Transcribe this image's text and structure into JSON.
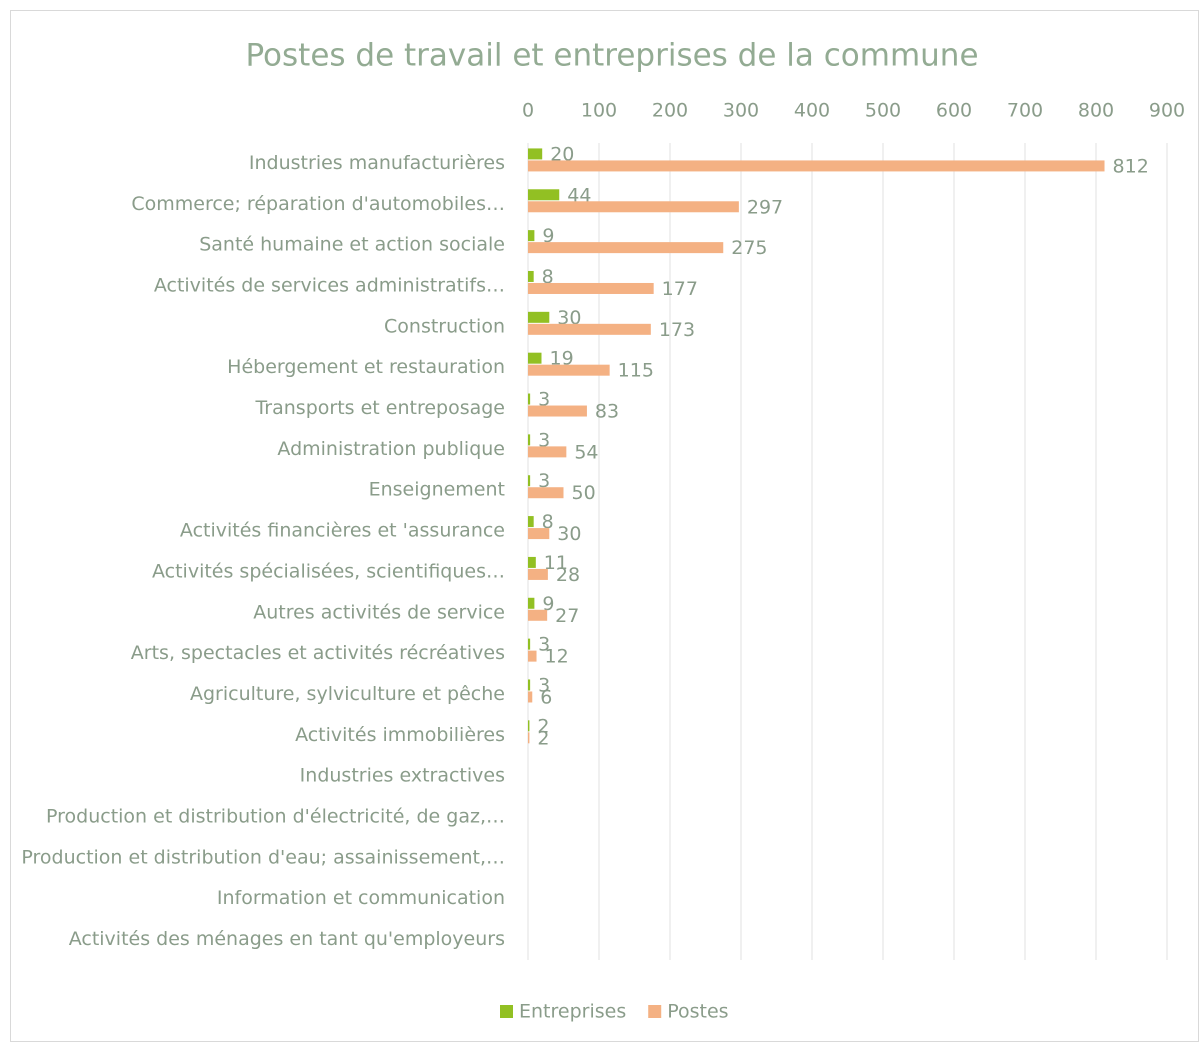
{
  "chart_data": {
    "type": "bar",
    "orientation": "horizontal",
    "title": "Postes de travail et entreprises de la commune",
    "categories": [
      "Industries manufacturières",
      "Commerce; réparation d'automobiles…",
      "Santé humaine et action sociale",
      "Activités de services administratifs…",
      "Construction",
      "Hébergement et restauration",
      "Transports et entreposage",
      "Administration publique",
      "Enseignement",
      "Activités financières et 'assurance",
      "Activités spécialisées, scientifiques…",
      "Autres activités de service",
      "Arts, spectacles et activités récréatives",
      "Agriculture, sylviculture et pêche",
      "Activités immobilières",
      "Industries extractives",
      "Production et distribution d'électricité, de gaz,…",
      "Production et distribution d'eau; assainissement,…",
      "Information et communication",
      "Activités des ménages en tant qu'employeurs"
    ],
    "series": [
      {
        "name": "Entreprises",
        "color": "#92c023",
        "values": [
          20,
          44,
          9,
          8,
          30,
          19,
          3,
          3,
          3,
          8,
          11,
          9,
          3,
          3,
          2,
          null,
          null,
          null,
          null,
          null
        ]
      },
      {
        "name": "Postes",
        "color": "#f4b183",
        "values": [
          812,
          297,
          275,
          177,
          173,
          115,
          83,
          54,
          50,
          30,
          28,
          27,
          12,
          6,
          2,
          null,
          null,
          null,
          null,
          null
        ]
      }
    ],
    "xlim": [
      0,
      900
    ],
    "xticks": [
      0,
      100,
      200,
      300,
      400,
      500,
      600,
      700,
      800,
      900
    ],
    "grid": true,
    "legend": "bottom"
  }
}
